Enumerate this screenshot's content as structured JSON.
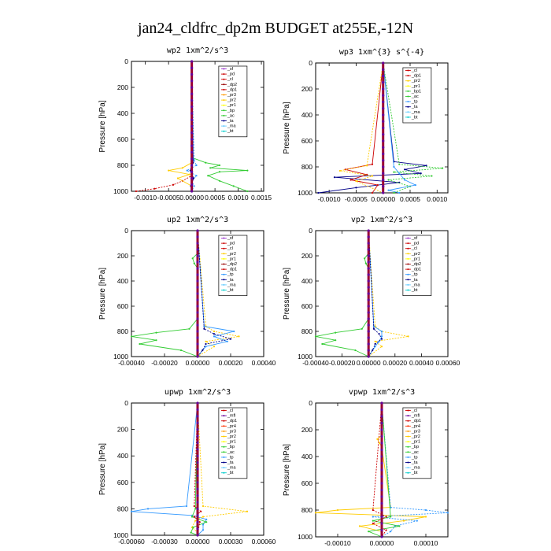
{
  "title": "jan24_cldfrc_dp2m  BUDGET at255E,-12N",
  "chart_data": [
    {
      "type": "line",
      "title": "wp2  1xm^2/s^3",
      "ylabel": "Pressure [hPa]",
      "ylim": [
        1000,
        0
      ],
      "xlim": [
        -0.0013,
        0.00155
      ],
      "xticks": [
        "-0.0010",
        "-0.0005",
        "0.00000",
        "0.0005",
        "0.0010",
        "0.0015"
      ],
      "xtick_values": [
        -0.001,
        -0.0005,
        0,
        0.0005,
        0.001,
        0.0015
      ],
      "yticks": [
        "0",
        "200",
        "400",
        "600",
        "800",
        "1000"
      ],
      "legend": [
        "_sf",
        "_pd",
        "_cl",
        "_dp2",
        "_dp1",
        "_pr3",
        "_pr2",
        "_pr1",
        "_bp",
        "_ac",
        "_ta",
        "_ma",
        "_bt"
      ],
      "series": [
        {
          "name": "_ac",
          "color": "#33cc33",
          "p": [
            0,
            740,
            780,
            800,
            820,
            840,
            850,
            880,
            920,
            960,
            1000
          ],
          "v": [
            0,
            0,
            0.0003,
            0.0006,
            0.0004,
            0.0012,
            0.0006,
            0.00035,
            0.0006,
            0.0009,
            0.0012
          ]
        },
        {
          "name": "_pd",
          "color": "#cc0000",
          "p": [
            0,
            880,
            920,
            950,
            980,
            1000
          ],
          "v": [
            0,
            0,
            -0.0002,
            -0.0004,
            -0.0008,
            -0.0012
          ]
        },
        {
          "name": "_dp1",
          "color": "#ffcc00",
          "p": [
            0,
            780,
            820,
            840,
            870,
            900,
            960,
            1000
          ],
          "v": [
            0,
            0,
            -0.0002,
            -0.0005,
            -5e-05,
            -0.0003,
            0,
            0
          ]
        },
        {
          "name": "_bp",
          "color": "#3399ff",
          "p": [
            0,
            760,
            800,
            840,
            880,
            920,
            960,
            1000
          ],
          "v": [
            0,
            5e-05,
            0.0001,
            -0.0001,
            0.0001,
            0,
            5e-05,
            0
          ]
        },
        {
          "name": "_ta",
          "color": "#000088",
          "p": [
            0,
            780,
            840,
            900,
            960,
            1000
          ],
          "v": [
            0,
            3e-05,
            -3e-05,
            4e-05,
            -2e-05,
            0
          ]
        }
      ]
    },
    {
      "type": "line",
      "title": "wp3  1xm^{3} s^{-4}",
      "ylabel": "Pressure [hPa]",
      "ylim": [
        1000,
        0
      ],
      "xlim": [
        -0.00125,
        0.0012
      ],
      "xticks": [
        "-0.0010",
        "-0.0005",
        "0.00000",
        "0.0005",
        "0.0010"
      ],
      "xtick_values": [
        -0.001,
        -0.0005,
        0,
        0.0005,
        0.001
      ],
      "yticks": [
        "0",
        "200",
        "400",
        "600",
        "800",
        "1000"
      ],
      "legend": [
        "_cl",
        "_dp1",
        "_pr2",
        "_pr1",
        "_bp1",
        "_ac",
        "_tp",
        "_ta",
        "_ma",
        "_bt"
      ],
      "series": [
        {
          "name": "_ta",
          "color": "#000088",
          "p": [
            0,
            760,
            790,
            820,
            850,
            880,
            920,
            960,
            1000
          ],
          "v": [
            0,
            0.0002,
            0.0008,
            0.0004,
            0.0007,
            -0.0009,
            0.0003,
            -0.0005,
            -0.0012
          ]
        },
        {
          "name": "_ac",
          "color": "#33cc33",
          "p": [
            0,
            780,
            810,
            840,
            870,
            900,
            950,
            1000
          ],
          "v": [
            0,
            0.0003,
            0.0011,
            0.0002,
            0.0009,
            0.0001,
            0.0005,
            0.0002
          ]
        },
        {
          "name": "_dp1",
          "color": "#cc0000",
          "p": [
            0,
            780,
            820,
            860,
            900,
            940,
            1000
          ],
          "v": [
            0,
            -0.0002,
            -0.0007,
            -0.0003,
            -0.0006,
            -0.0001,
            -0.0002
          ]
        },
        {
          "name": "_pr2",
          "color": "#ffcc00",
          "p": [
            0,
            790,
            830,
            870,
            910,
            1000
          ],
          "v": [
            0,
            -0.0003,
            -0.0008,
            -0.0002,
            -0.0005,
            0
          ]
        },
        {
          "name": "_tp",
          "color": "#3399ff",
          "p": [
            0,
            800,
            850,
            900,
            940,
            980,
            1000
          ],
          "v": [
            0,
            0.0002,
            0.0003,
            0.0004,
            0.0006,
            0.0001,
            0.0003
          ]
        }
      ]
    },
    {
      "type": "line",
      "title": "up2  1xm^2/s^3",
      "ylabel": "Pressure [hPa]",
      "ylim": [
        1000,
        0
      ],
      "xlim": [
        -0.0004,
        0.0004
      ],
      "xticks": [
        "-0.00040",
        "-0.00020",
        "0.00000",
        "0.00020",
        "0.00040"
      ],
      "xtick_values": [
        -0.0004,
        -0.0002,
        0,
        0.0002,
        0.0004
      ],
      "yticks": [
        "0",
        "200",
        "400",
        "600",
        "800",
        "1000"
      ],
      "legend": [
        "_sf",
        "_pd",
        "_cl",
        "_pr2",
        "_pr1",
        "_dp2",
        "_dp1",
        "_tp",
        "_ta",
        "_ma",
        "_bt"
      ],
      "series": [
        {
          "name": "_dp1",
          "color": "#33cc33",
          "p": [
            0,
            180,
            220,
            260,
            300,
            700,
            780,
            810,
            840,
            870,
            900,
            950,
            1000
          ],
          "v": [
            0,
            0,
            -3e-05,
            -2e-05,
            0,
            0,
            -5e-05,
            -0.00025,
            -0.0004,
            -0.00025,
            -0.00035,
            -0.0001,
            0
          ]
        },
        {
          "name": "_pr2",
          "color": "#ffcc00",
          "p": [
            0,
            760,
            800,
            840,
            880,
            920,
            1000
          ],
          "v": [
            0,
            5e-05,
            0.0001,
            0.00025,
            5e-05,
            0.0001,
            0
          ]
        },
        {
          "name": "_tp",
          "color": "#3399ff",
          "p": [
            0,
            760,
            800,
            840,
            880,
            920,
            1000
          ],
          "v": [
            0,
            4e-05,
            0.00022,
            0.0001,
            0.00018,
            5e-05,
            0
          ]
        },
        {
          "name": "_ta",
          "color": "#000088",
          "p": [
            0,
            780,
            820,
            860,
            900,
            950,
            1000
          ],
          "v": [
            0,
            4e-05,
            0.0001,
            0.0002,
            5e-05,
            3e-05,
            0
          ]
        }
      ]
    },
    {
      "type": "line",
      "title": "vp2  1xm^2/s^3",
      "ylabel": "Pressure [hPa]",
      "ylim": [
        1000,
        0
      ],
      "xlim": [
        -0.0004,
        0.0006
      ],
      "xticks": [
        "-0.00040",
        "-0.00020",
        "0.00000",
        "0.00020",
        "0.00040",
        "0.00060"
      ],
      "xtick_values": [
        -0.0004,
        -0.0002,
        0,
        0.0002,
        0.0004,
        0.0006
      ],
      "yticks": [
        "0",
        "200",
        "400",
        "600",
        "800",
        "1000"
      ],
      "legend": [
        "_sf",
        "_pd",
        "_cl",
        "_pr2",
        "_pr1",
        "_dp2",
        "_dp1",
        "_tp",
        "_ta",
        "_ma",
        "_bt"
      ],
      "series": [
        {
          "name": "_dp1",
          "color": "#33cc33",
          "p": [
            0,
            180,
            220,
            260,
            300,
            700,
            780,
            810,
            840,
            870,
            900,
            950,
            1000
          ],
          "v": [
            0,
            0,
            -3e-05,
            -2e-05,
            0,
            0,
            -5e-05,
            -0.00025,
            -0.0004,
            -0.00025,
            -0.00035,
            -0.0001,
            0
          ]
        },
        {
          "name": "_pr2",
          "color": "#ffcc00",
          "p": [
            0,
            760,
            800,
            840,
            880,
            920,
            1000
          ],
          "v": [
            0,
            5e-05,
            0.0001,
            0.0003,
            5e-05,
            0.0001,
            0
          ]
        },
        {
          "name": "_tp",
          "color": "#3399ff",
          "p": [
            0,
            760,
            800,
            840,
            880,
            920,
            1000
          ],
          "v": [
            0,
            4e-05,
            0.0001,
            0.0001,
            8e-05,
            5e-05,
            0
          ]
        },
        {
          "name": "_ta",
          "color": "#000088",
          "p": [
            0,
            780,
            820,
            860,
            900,
            950,
            1000
          ],
          "v": [
            0,
            4e-05,
            8e-05,
            0.0001,
            5e-05,
            3e-05,
            0
          ]
        }
      ]
    },
    {
      "type": "line",
      "title": "upwp  1xm^2/s^3",
      "ylabel": "Pressure [hPa]",
      "ylim": [
        1000,
        0
      ],
      "xlim": [
        -0.0006,
        0.0006
      ],
      "xticks": [
        "-0.00060",
        "-0.00030",
        "0.00000",
        "0.00030",
        "0.00060"
      ],
      "xtick_values": [
        -0.0006,
        -0.0003,
        0,
        0.0003,
        0.0006
      ],
      "yticks": [
        "0",
        "200",
        "400",
        "600",
        "800",
        "1000"
      ],
      "legend": [
        "_cl",
        "_mfl",
        "_dp1",
        "_pr4",
        "_pr3",
        "_pr2",
        "_pr1",
        "_bp",
        "_ac",
        "_tp",
        "_ta",
        "_ma",
        "_bt"
      ],
      "series": [
        {
          "name": "_tp",
          "color": "#3399ff",
          "p": [
            0,
            780,
            800,
            820,
            850,
            880,
            920,
            960,
            1000
          ],
          "v": [
            0,
            -0.0001,
            -0.00045,
            -0.0006,
            -5e-05,
            8e-05,
            5e-05,
            5e-05,
            0
          ]
        },
        {
          "name": "_pr3",
          "color": "#ffcc00",
          "p": [
            0,
            780,
            820,
            860,
            890,
            940,
            980,
            1000
          ],
          "v": [
            0,
            5e-05,
            0.00045,
            5e-05,
            -2e-05,
            -5e-05,
            0,
            0
          ]
        },
        {
          "name": "_ac",
          "color": "#33cc33",
          "p": [
            0,
            800,
            860,
            900,
            940,
            980,
            1000
          ],
          "v": [
            0,
            -2e-05,
            -5e-05,
            8e-05,
            -4e-05,
            -6e-05,
            0
          ]
        },
        {
          "name": "_dp1",
          "color": "#cc0000",
          "p": [
            0,
            780,
            820,
            860,
            900,
            1000
          ],
          "v": [
            0,
            -3e-05,
            3e-05,
            -3e-05,
            2e-05,
            0
          ]
        }
      ]
    },
    {
      "type": "line",
      "title": "vpwp  1xm^2/s^3",
      "ylabel": "Pressure [hPa]",
      "ylim": [
        1000,
        0
      ],
      "xlim": [
        -0.00015,
        0.00015
      ],
      "xticks": [
        "-0.00010",
        "0.00000",
        "0.00010"
      ],
      "xtick_values": [
        -0.0001,
        0,
        0.0001
      ],
      "yticks": [
        "0",
        "200",
        "400",
        "600",
        "800",
        "1000"
      ],
      "legend": [
        "_cl",
        "_mfl",
        "_dp1",
        "_pr4",
        "_pr3",
        "_pr2",
        "_pr1",
        "_bp",
        "_ac",
        "_tp",
        "_ta",
        "_ma",
        "_bt"
      ],
      "series": [
        {
          "name": "_pr3",
          "color": "#ffcc00",
          "p": [
            0,
            240,
            270,
            300,
            330,
            780,
            800,
            820,
            850,
            880,
            920,
            960,
            1000
          ],
          "v": [
            0,
            0,
            -1e-05,
            -5e-06,
            0,
            2e-05,
            -0.0001,
            -0.00015,
            0.0001,
            5e-05,
            -5e-05,
            0,
            0
          ]
        },
        {
          "name": "_tp",
          "color": "#3399ff",
          "p": [
            0,
            780,
            800,
            820,
            850,
            880,
            920,
            960,
            1000
          ],
          "v": [
            0,
            2e-05,
            0.0001,
            0.00015,
            -2e-05,
            8e-05,
            3e-05,
            2e-05,
            0
          ]
        },
        {
          "name": "_ac",
          "color": "#33cc33",
          "p": [
            0,
            850,
            880,
            920,
            960,
            1000
          ],
          "v": [
            0,
            2e-05,
            -2e-05,
            4e-05,
            -3e-05,
            0
          ]
        },
        {
          "name": "_dp1",
          "color": "#cc0000",
          "p": [
            0,
            800,
            850,
            900,
            950,
            1000
          ],
          "v": [
            0,
            -2e-05,
            1e-05,
            -2e-05,
            1e-05,
            0
          ]
        }
      ]
    }
  ]
}
